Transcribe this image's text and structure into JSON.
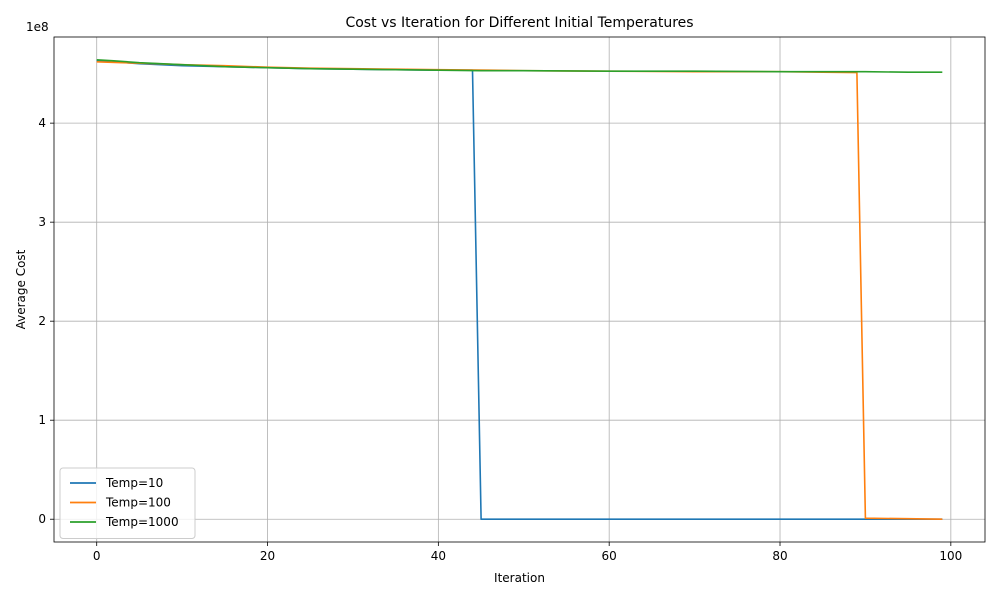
{
  "chart_data": {
    "type": "line",
    "title": "Cost vs Iteration for Different Initial Temperatures",
    "xlabel": "Iteration",
    "ylabel": "Average Cost",
    "y_offset_label": "1e8",
    "xlim": [
      -5,
      104
    ],
    "ylim": [
      -0.23,
      4.87
    ],
    "y_unit_multiplier": 100000000,
    "x_ticks": [
      0,
      20,
      40,
      60,
      80,
      100
    ],
    "y_ticks": [
      0,
      1,
      2,
      3,
      4
    ],
    "grid": true,
    "legend_position": "lower-left",
    "series": [
      {
        "name": "Temp=10",
        "color": "#1f77b4",
        "x": [
          0,
          2,
          5,
          10,
          15,
          20,
          25,
          30,
          35,
          40,
          44,
          45,
          50,
          60,
          70,
          80,
          90,
          99
        ],
        "y": [
          4.63,
          4.62,
          4.6,
          4.58,
          4.57,
          4.56,
          4.55,
          4.545,
          4.54,
          4.535,
          4.535,
          0.0,
          0.0,
          0.0,
          0.0,
          0.0,
          0.0,
          0.0
        ]
      },
      {
        "name": "Temp=100",
        "color": "#ff7f0e",
        "x": [
          0,
          3,
          7,
          10,
          15,
          20,
          25,
          30,
          35,
          40,
          46,
          50,
          60,
          70,
          80,
          85,
          89,
          90,
          95,
          99
        ],
        "y": [
          4.62,
          4.61,
          4.6,
          4.59,
          4.58,
          4.565,
          4.555,
          4.55,
          4.545,
          4.54,
          4.535,
          4.53,
          4.525,
          4.52,
          4.52,
          4.515,
          4.51,
          0.01,
          0.005,
          0.0
        ]
      },
      {
        "name": "Temp=1000",
        "color": "#2ca02c",
        "x": [
          0,
          2,
          5,
          10,
          15,
          20,
          25,
          30,
          35,
          40,
          45,
          50,
          60,
          70,
          80,
          90,
          95,
          99
        ],
        "y": [
          4.64,
          4.63,
          4.61,
          4.59,
          4.57,
          4.56,
          4.55,
          4.545,
          4.54,
          4.535,
          4.53,
          4.53,
          4.525,
          4.525,
          4.52,
          4.52,
          4.515,
          4.515
        ]
      }
    ]
  }
}
